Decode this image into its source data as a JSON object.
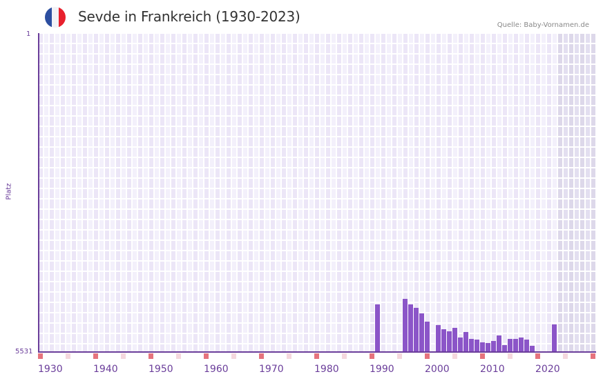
{
  "header": {
    "title": "Sevde in Frankreich (1930-2023)",
    "source": "Quelle: Baby-Vornamen.de",
    "flag_colors": [
      "#2c4ea0",
      "#f2f2f6",
      "#e8202d"
    ]
  },
  "colors": {
    "bar": "#8b55c8",
    "axis": "#6a3d9a",
    "grid_light": "#f3f0fb",
    "grid_dark": "#ece6f7",
    "future_shade": "#e3dff0",
    "tick_decade": "#e5737d",
    "tick_half": "#f5d8de"
  },
  "chart_data": {
    "type": "bar",
    "title": "Sevde in Frankreich (1930-2023)",
    "xlabel": "",
    "ylabel": "Platz",
    "y_inverted": true,
    "ylim": [
      1,
      5531
    ],
    "y_ticks": [
      "1",
      "5531"
    ],
    "x_range": [
      1930,
      2030
    ],
    "x_ticks": [
      "1930",
      "1940",
      "1950",
      "1960",
      "1970",
      "1980",
      "1990",
      "2000",
      "2010",
      "2020"
    ],
    "future_shaded_from": 2024,
    "grid": true,
    "legend": null,
    "categories": [
      1991,
      1996,
      1997,
      1998,
      1999,
      2000,
      2002,
      2003,
      2004,
      2005,
      2006,
      2007,
      2008,
      2009,
      2010,
      2011,
      2012,
      2013,
      2014,
      2015,
      2016,
      2017,
      2018,
      2019,
      2023
    ],
    "values": [
      4705,
      4610,
      4705,
      4765,
      4860,
      5005,
      5065,
      5135,
      5170,
      5110,
      5280,
      5185,
      5305,
      5315,
      5365,
      5375,
      5340,
      5245,
      5410,
      5305,
      5305,
      5280,
      5315,
      5425,
      5050
    ],
    "series": [
      {
        "name": "Platz",
        "values": [
          4705,
          4610,
          4705,
          4765,
          4860,
          5005,
          5065,
          5135,
          5170,
          5110,
          5280,
          5185,
          5305,
          5315,
          5365,
          5375,
          5340,
          5245,
          5410,
          5305,
          5305,
          5280,
          5315,
          5425,
          5050
        ]
      }
    ]
  },
  "axis": {
    "y_top_label": "1",
    "y_bottom_label": "5531",
    "y_title": "Platz"
  }
}
